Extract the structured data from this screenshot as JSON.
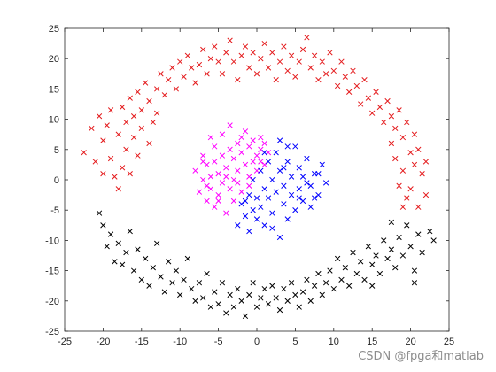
{
  "watermark": "CSDN @fpga和matlab",
  "chart_data": {
    "type": "scatter",
    "title": "",
    "xlabel": "",
    "ylabel": "",
    "xlim": [
      -25,
      25
    ],
    "ylim": [
      -25,
      25
    ],
    "xticks": [
      -25,
      -20,
      -15,
      -10,
      -5,
      0,
      5,
      10,
      15,
      20,
      25
    ],
    "yticks": [
      -25,
      -20,
      -15,
      -10,
      -5,
      0,
      5,
      10,
      15,
      20,
      25
    ],
    "grid": false,
    "legend": "none",
    "marker": "x",
    "series": [
      {
        "color": "#e41a1c",
        "points": [
          [
            -22.5,
            4.5
          ],
          [
            -21.5,
            8.5
          ],
          [
            -21,
            3
          ],
          [
            -20.5,
            10.5
          ],
          [
            -20,
            6.5
          ],
          [
            -20,
            1
          ],
          [
            -19.5,
            9
          ],
          [
            -19,
            11.5
          ],
          [
            -19,
            3.5
          ],
          [
            -18.5,
            0.5
          ],
          [
            -18,
            7.5
          ],
          [
            -18,
            -1.5
          ],
          [
            -17.5,
            12
          ],
          [
            -17.5,
            2
          ],
          [
            -17,
            9.5
          ],
          [
            -17,
            5
          ],
          [
            -16.5,
            13.5
          ],
          [
            -16.5,
            1
          ],
          [
            -16,
            10.5
          ],
          [
            -16,
            7
          ],
          [
            -15.5,
            14.5
          ],
          [
            -15.5,
            4
          ],
          [
            -15,
            11.5
          ],
          [
            -15,
            8.5
          ],
          [
            -14.5,
            16
          ],
          [
            -14,
            13
          ],
          [
            -14,
            6
          ],
          [
            -13.5,
            9.5
          ],
          [
            -13,
            15
          ],
          [
            -13,
            11
          ],
          [
            -12.5,
            17.5
          ],
          [
            -12,
            14
          ],
          [
            -11.5,
            16.5
          ],
          [
            -11,
            18.5
          ],
          [
            -10.5,
            15
          ],
          [
            -10,
            19.5
          ],
          [
            -9.5,
            17
          ],
          [
            -9,
            20.5
          ],
          [
            -8.5,
            18.5
          ],
          [
            -8,
            16
          ],
          [
            -7.5,
            19
          ],
          [
            -7,
            21.5
          ],
          [
            -6.5,
            17.5
          ],
          [
            -6,
            20
          ],
          [
            -5.5,
            22
          ],
          [
            -5,
            19.5
          ],
          [
            -4.5,
            17.5
          ],
          [
            -4,
            21
          ],
          [
            -3.5,
            23
          ],
          [
            -3,
            19.5
          ],
          [
            -2.5,
            16.5
          ],
          [
            -2,
            20.5
          ],
          [
            -1.5,
            22
          ],
          [
            -1,
            18.5
          ],
          [
            -0.5,
            21
          ],
          [
            0,
            17.5
          ],
          [
            0.5,
            20
          ],
          [
            1,
            22.5
          ],
          [
            1.5,
            18.5
          ],
          [
            2,
            21
          ],
          [
            2.5,
            16.5
          ],
          [
            3,
            19.5
          ],
          [
            3.5,
            22
          ],
          [
            4,
            18
          ],
          [
            4.5,
            20.5
          ],
          [
            5,
            17
          ],
          [
            5.5,
            19.5
          ],
          [
            6,
            21.5
          ],
          [
            6.5,
            23.5
          ],
          [
            7,
            18.5
          ],
          [
            7.5,
            20.5
          ],
          [
            8,
            16.5
          ],
          [
            8.5,
            19.5
          ],
          [
            9,
            17.5
          ],
          [
            9.5,
            21
          ],
          [
            10,
            18
          ],
          [
            10.5,
            15.5
          ],
          [
            11,
            19.5
          ],
          [
            11.5,
            17
          ],
          [
            12,
            14.5
          ],
          [
            12.5,
            18
          ],
          [
            13,
            15.5
          ],
          [
            13.5,
            12.5
          ],
          [
            14,
            16.5
          ],
          [
            14.5,
            13.5
          ],
          [
            15,
            11
          ],
          [
            15.5,
            14.5
          ],
          [
            16,
            12
          ],
          [
            16.5,
            9.5
          ],
          [
            17,
            13
          ],
          [
            17.5,
            10.5
          ],
          [
            17.5,
            6
          ],
          [
            18,
            8.5
          ],
          [
            18,
            3.5
          ],
          [
            18.5,
            11.5
          ],
          [
            18.5,
            -1
          ],
          [
            19,
            7
          ],
          [
            19,
            1.5
          ],
          [
            19.5,
            9.5
          ],
          [
            19.5,
            -3
          ],
          [
            20,
            4.5
          ],
          [
            20,
            -1.5
          ],
          [
            20.5,
            7.5
          ],
          [
            20.5,
            2.5
          ],
          [
            21,
            5
          ],
          [
            21,
            -4.5
          ],
          [
            21.5,
            1
          ],
          [
            22,
            3
          ],
          [
            22,
            -2.5
          ],
          [
            19,
            -4.5
          ]
        ]
      },
      {
        "color": "#000000",
        "points": [
          [
            -20.5,
            -5.5
          ],
          [
            -20,
            -7.5
          ],
          [
            -19.5,
            -11
          ],
          [
            -19,
            -9
          ],
          [
            -18.5,
            -13.5
          ],
          [
            -18,
            -10.5
          ],
          [
            -17.5,
            -14
          ],
          [
            -17,
            -12
          ],
          [
            -16.5,
            -8.5
          ],
          [
            -16,
            -15
          ],
          [
            -15.5,
            -11.5
          ],
          [
            -15,
            -16.5
          ],
          [
            -14.5,
            -13
          ],
          [
            -14,
            -17.5
          ],
          [
            -13.5,
            -14.5
          ],
          [
            -13,
            -10.5
          ],
          [
            -12.5,
            -16
          ],
          [
            -12,
            -18.5
          ],
          [
            -11.5,
            -13.5
          ],
          [
            -11,
            -17
          ],
          [
            -10.5,
            -15
          ],
          [
            -10,
            -19
          ],
          [
            -9.5,
            -16.5
          ],
          [
            -9,
            -13
          ],
          [
            -8.5,
            -18
          ],
          [
            -8,
            -20
          ],
          [
            -7.5,
            -17
          ],
          [
            -7,
            -19.5
          ],
          [
            -6.5,
            -15.5
          ],
          [
            -6,
            -21
          ],
          [
            -5.5,
            -18.5
          ],
          [
            -5,
            -20.5
          ],
          [
            -4.5,
            -17
          ],
          [
            -4,
            -22
          ],
          [
            -3.5,
            -19
          ],
          [
            -3,
            -21
          ],
          [
            -2.5,
            -18
          ],
          [
            -2,
            -20
          ],
          [
            -1.5,
            -22.5
          ],
          [
            -1,
            -19
          ],
          [
            -0.5,
            -17
          ],
          [
            0,
            -21
          ],
          [
            0.5,
            -19.5
          ],
          [
            1,
            -18
          ],
          [
            1.5,
            -20.5
          ],
          [
            2,
            -17.5
          ],
          [
            2.5,
            -19.5
          ],
          [
            3,
            -21.5
          ],
          [
            3.5,
            -18
          ],
          [
            4,
            -20
          ],
          [
            4.5,
            -17
          ],
          [
            5,
            -19
          ],
          [
            5.5,
            -21
          ],
          [
            6,
            -18.5
          ],
          [
            6.5,
            -16.5
          ],
          [
            7,
            -20
          ],
          [
            7.5,
            -17.5
          ],
          [
            8,
            -15.5
          ],
          [
            8.5,
            -19
          ],
          [
            9,
            -17
          ],
          [
            9.5,
            -15
          ],
          [
            10,
            -18
          ],
          [
            10.5,
            -13
          ],
          [
            11,
            -16.5
          ],
          [
            11.5,
            -14.5
          ],
          [
            12,
            -17.5
          ],
          [
            12.5,
            -12
          ],
          [
            13,
            -15.5
          ],
          [
            13.5,
            -13.5
          ],
          [
            14,
            -16.5
          ],
          [
            14.5,
            -11
          ],
          [
            15,
            -14
          ],
          [
            15.5,
            -12.5
          ],
          [
            16,
            -15.5
          ],
          [
            16.5,
            -10
          ],
          [
            17,
            -13
          ],
          [
            17.5,
            -11.5
          ],
          [
            18,
            -14.5
          ],
          [
            18.5,
            -9.5
          ],
          [
            19,
            -12.5
          ],
          [
            19.5,
            -7.5
          ],
          [
            20,
            -11
          ],
          [
            20.5,
            -15
          ],
          [
            21,
            -9
          ],
          [
            21.5,
            -12
          ],
          [
            22.5,
            -8.5
          ],
          [
            23,
            -10
          ],
          [
            20.5,
            -17
          ],
          [
            17.5,
            -7
          ],
          [
            15,
            -17.5
          ]
        ]
      },
      {
        "color": "#ff00ff",
        "points": [
          [
            -8,
            1.5
          ],
          [
            -7.5,
            -2
          ],
          [
            -7,
            4
          ],
          [
            -7,
            0
          ],
          [
            -6.5,
            -3.5
          ],
          [
            -6.5,
            2.5
          ],
          [
            -6,
            0.5
          ],
          [
            -6,
            -1.5
          ],
          [
            -5.5,
            5.5
          ],
          [
            -5.5,
            3
          ],
          [
            -5.5,
            -4.5
          ],
          [
            -5,
            1
          ],
          [
            -5,
            -2.5
          ],
          [
            -4.5,
            7.5
          ],
          [
            -4.5,
            4
          ],
          [
            -4.5,
            -0.5
          ],
          [
            -4,
            2
          ],
          [
            -4,
            -5.5
          ],
          [
            -3.5,
            5
          ],
          [
            -3.5,
            -1.5
          ],
          [
            -3,
            3.5
          ],
          [
            -3,
            0
          ],
          [
            -3,
            -3.5
          ],
          [
            -2.5,
            6
          ],
          [
            -2.5,
            1.5
          ],
          [
            -2,
            4.5
          ],
          [
            -2,
            -2
          ],
          [
            -1.5,
            8
          ],
          [
            -1.5,
            2.5
          ],
          [
            -1,
            5.5
          ],
          [
            -1,
            0.5
          ],
          [
            -0.5,
            3
          ],
          [
            -0.5,
            6.5
          ],
          [
            0,
            4
          ],
          [
            0,
            1.5
          ],
          [
            0.5,
            7
          ],
          [
            0.5,
            5
          ],
          [
            1,
            2.5
          ],
          [
            1,
            6
          ],
          [
            1.5,
            4.5
          ],
          [
            -6,
            7
          ],
          [
            -7,
            3
          ],
          [
            -5,
            -3.5
          ],
          [
            -2,
            7
          ],
          [
            -3.5,
            9
          ],
          [
            -1,
            -1
          ],
          [
            0.5,
            3
          ],
          [
            -4,
            0.5
          ],
          [
            -6.5,
            -1
          ],
          [
            -2.5,
            -0.5
          ]
        ]
      },
      {
        "color": "#0000ff",
        "points": [
          [
            -2.5,
            -7.5
          ],
          [
            -2,
            -4
          ],
          [
            -1.5,
            -6
          ],
          [
            -1,
            -2.5
          ],
          [
            -1,
            -8.5
          ],
          [
            -0.5,
            -5
          ],
          [
            -0.5,
            0
          ],
          [
            0,
            -3
          ],
          [
            0,
            -6.5
          ],
          [
            0.5,
            1.5
          ],
          [
            0.5,
            -4.5
          ],
          [
            1,
            -1.5
          ],
          [
            1,
            -7.5
          ],
          [
            1.5,
            3
          ],
          [
            1.5,
            -3
          ],
          [
            2,
            0
          ],
          [
            2,
            -5.5
          ],
          [
            2.5,
            4.5
          ],
          [
            2.5,
            -2
          ],
          [
            3,
            1.5
          ],
          [
            3,
            -9.5
          ],
          [
            3.5,
            -1
          ],
          [
            3.5,
            -4
          ],
          [
            4,
            3
          ],
          [
            4,
            -6.5
          ],
          [
            4.5,
            0.5
          ],
          [
            4.5,
            -2.5
          ],
          [
            5,
            5.5
          ],
          [
            5,
            -5
          ],
          [
            5.5,
            2
          ],
          [
            5.5,
            -1.5
          ],
          [
            6,
            -3.5
          ],
          [
            6,
            0.5
          ],
          [
            6.5,
            3.5
          ],
          [
            7,
            -1
          ],
          [
            7,
            -4.5
          ],
          [
            7.5,
            1
          ],
          [
            8,
            -2.5
          ],
          [
            8.5,
            2.5
          ],
          [
            9,
            -0.5
          ],
          [
            3,
            6.5
          ],
          [
            4,
            5.5
          ],
          [
            5.5,
            -3
          ],
          [
            2,
            -8
          ],
          [
            -1.5,
            -3.5
          ],
          [
            6.5,
            -0.5
          ],
          [
            1,
            4.5
          ],
          [
            3.5,
            2
          ],
          [
            7.5,
            -3
          ],
          [
            8,
            1
          ]
        ]
      }
    ]
  }
}
